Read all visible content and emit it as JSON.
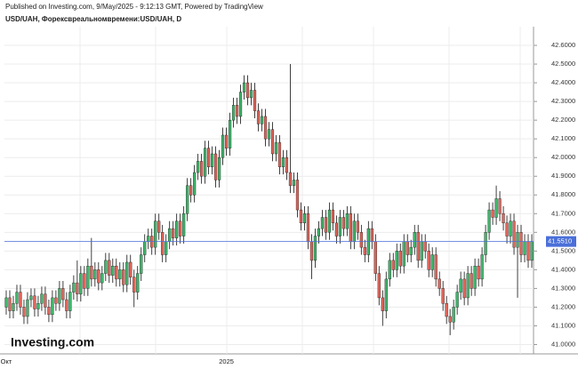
{
  "header": {
    "published": "Published on Investing.com, 9/May/2025 - 9:12:13 GMT, Powered by TradingView",
    "symbol": "USD/UAH, Форексвреальномвремени:USD/UAH, D"
  },
  "logo": "Investing.com",
  "chart_data": {
    "type": "candlestick",
    "up_color": "#3fb76b",
    "down_color": "#e0655a",
    "wick_color": "#111",
    "last_price": {
      "value": 41.551,
      "label": "41.5510"
    },
    "last_price_color": "#4a6fd8",
    "ylim": [
      40.95,
      42.7
    ],
    "yticks": [
      {
        "value": 41,
        "label": "41.0000"
      },
      {
        "value": 41.1,
        "label": "41.1000"
      },
      {
        "value": 41.2,
        "label": "41.2000"
      },
      {
        "value": 41.3,
        "label": "41.3000"
      },
      {
        "value": 41.4,
        "label": "41.4000"
      },
      {
        "value": 41.5,
        "label": "41.5000"
      },
      {
        "value": 41.6,
        "label": "41.6000"
      },
      {
        "value": 41.7,
        "label": "41.7000"
      },
      {
        "value": 41.8,
        "label": "41.8000"
      },
      {
        "value": 41.9,
        "label": "41.9000"
      },
      {
        "value": 42,
        "label": "42.0000"
      },
      {
        "value": 42.1,
        "label": "42.1000"
      },
      {
        "value": 42.2,
        "label": "42.2000"
      },
      {
        "value": 42.3,
        "label": "42.3000"
      },
      {
        "value": 42.4,
        "label": "42.4000"
      },
      {
        "value": 42.5,
        "label": "42.5000"
      },
      {
        "value": 42.6,
        "label": "42.6000"
      }
    ],
    "grid": true,
    "categories": [
      "Окт",
      null,
      null,
      null,
      null,
      null,
      null,
      null,
      null,
      null,
      null,
      null,
      null,
      null,
      null,
      null,
      null,
      null,
      null,
      null,
      null,
      null,
      null,
      null,
      null,
      null,
      null,
      null,
      null,
      null,
      null,
      null,
      null,
      null,
      null,
      null,
      null,
      null,
      null,
      null,
      null,
      null,
      null,
      null,
      null,
      null,
      null,
      null,
      null,
      null,
      null,
      null,
      null,
      null,
      null,
      null,
      null,
      null,
      null,
      null,
      null,
      null,
      "2025",
      null,
      null,
      null,
      null,
      null,
      null,
      null,
      null,
      null,
      null,
      null,
      null,
      null,
      null,
      null,
      null,
      null,
      null,
      null,
      null,
      null,
      null,
      null,
      null,
      null,
      null,
      null,
      null,
      null,
      null,
      null,
      null,
      null,
      null,
      null,
      null,
      null,
      null,
      null,
      null,
      null,
      null,
      null,
      null,
      null,
      null,
      null,
      null,
      null,
      null,
      null,
      null,
      null,
      null,
      null,
      null,
      null,
      null,
      null,
      null,
      null,
      null,
      null,
      null,
      null,
      null,
      null,
      null,
      null,
      null,
      null,
      null,
      null,
      null,
      null,
      null,
      null,
      null,
      null,
      null,
      null,
      null,
      null,
      null,
      null,
      null
    ],
    "open": [
      41.2,
      41.25,
      41.18,
      41.22,
      41.28,
      41.2,
      41.15,
      41.24,
      41.26,
      41.19,
      41.22,
      41.27,
      41.2,
      41.16,
      41.25,
      41.22,
      41.3,
      41.24,
      41.18,
      41.28,
      41.33,
      41.27,
      41.38,
      41.3,
      41.42,
      41.35,
      41.4,
      41.33,
      41.38,
      41.45,
      41.37,
      41.42,
      41.35,
      41.4,
      41.32,
      41.44,
      41.36,
      41.28,
      41.38,
      41.48,
      41.55,
      41.58,
      41.52,
      41.66,
      41.6,
      41.48,
      41.55,
      41.62,
      41.57,
      41.66,
      41.58,
      41.7,
      41.85,
      41.8,
      41.92,
      41.98,
      41.9,
      42.05,
      41.95,
      42.02,
      41.88,
      42.0,
      42.12,
      42.05,
      42.2,
      42.28,
      42.22,
      42.35,
      42.4,
      42.32,
      42.36,
      42.25,
      42.18,
      42.22,
      42.1,
      42.15,
      42.02,
      42.08,
      41.95,
      42.0,
      41.92,
      41.85,
      41.88,
      41.72,
      41.65,
      41.7,
      41.55,
      41.45,
      41.58,
      41.62,
      41.68,
      41.6,
      41.72,
      41.65,
      41.58,
      41.68,
      41.62,
      41.7,
      41.55,
      41.66,
      41.6,
      41.52,
      41.48,
      41.62,
      41.55,
      41.38,
      41.25,
      41.18,
      41.35,
      41.45,
      41.4,
      41.5,
      41.42,
      41.55,
      41.48,
      41.52,
      41.6,
      41.45,
      41.55,
      41.5,
      41.4,
      41.48,
      41.35,
      41.3,
      41.22,
      41.15,
      41.12,
      41.2,
      41.28,
      41.35,
      41.25,
      41.38,
      41.3,
      41.42,
      41.35,
      41.48,
      41.6,
      41.72,
      41.68,
      41.78,
      41.7,
      41.65,
      41.58,
      41.66,
      41.52,
      41.6,
      41.48,
      41.55,
      41.45
    ],
    "high": [
      41.29,
      41.29,
      41.26,
      41.32,
      41.32,
      41.24,
      41.28,
      41.3,
      41.3,
      41.26,
      41.31,
      41.31,
      41.24,
      41.29,
      41.29,
      41.34,
      41.34,
      41.28,
      41.32,
      41.37,
      41.45,
      41.42,
      41.42,
      41.46,
      41.57,
      41.44,
      41.44,
      41.42,
      41.49,
      41.49,
      41.46,
      41.46,
      41.44,
      41.44,
      41.48,
      41.48,
      41.4,
      41.42,
      41.52,
      41.59,
      41.62,
      41.62,
      41.7,
      41.7,
      41.64,
      41.59,
      41.66,
      41.66,
      41.7,
      41.7,
      41.74,
      41.89,
      41.89,
      41.96,
      42.02,
      42.02,
      42.09,
      42.09,
      42.06,
      42.06,
      42.04,
      42.16,
      42.16,
      42.24,
      42.32,
      42.32,
      42.39,
      42.44,
      42.44,
      42.4,
      42.4,
      42.29,
      42.26,
      42.26,
      42.19,
      42.19,
      42.12,
      42.12,
      42.04,
      42.04,
      42.5,
      41.92,
      41.92,
      41.76,
      41.74,
      41.74,
      41.59,
      41.62,
      41.66,
      41.72,
      41.72,
      41.76,
      41.76,
      41.69,
      41.72,
      41.72,
      41.74,
      41.74,
      41.7,
      41.7,
      41.64,
      41.56,
      41.66,
      41.66,
      41.59,
      41.42,
      41.29,
      41.39,
      41.49,
      41.49,
      41.54,
      41.54,
      41.59,
      41.59,
      41.56,
      41.64,
      41.64,
      41.59,
      41.59,
      41.54,
      41.52,
      41.52,
      41.39,
      41.34,
      41.26,
      41.19,
      41.24,
      41.32,
      41.39,
      41.39,
      41.42,
      41.42,
      41.46,
      41.46,
      41.52,
      41.64,
      41.76,
      41.76,
      41.85,
      41.82,
      41.74,
      41.69,
      41.7,
      41.7,
      41.64,
      41.64,
      41.59,
      41.59,
      41.59
    ],
    "low": [
      41.16,
      41.14,
      41.14,
      41.18,
      41.16,
      41.11,
      41.11,
      41.2,
      41.15,
      41.15,
      41.18,
      41.16,
      41.12,
      41.12,
      41.18,
      41.18,
      41.2,
      41.14,
      41.14,
      41.24,
      41.23,
      41.23,
      41.26,
      41.26,
      41.31,
      41.31,
      41.29,
      41.29,
      41.34,
      41.33,
      41.33,
      41.31,
      41.31,
      41.28,
      41.28,
      41.32,
      41.2,
      41.24,
      41.34,
      41.44,
      41.51,
      41.48,
      41.48,
      41.56,
      41.44,
      41.44,
      41.51,
      41.53,
      41.53,
      41.54,
      41.54,
      41.66,
      41.76,
      41.76,
      41.88,
      41.86,
      41.86,
      41.91,
      41.91,
      41.84,
      41.84,
      41.96,
      42.01,
      42.01,
      42.16,
      42.18,
      42.18,
      42.31,
      42.28,
      42.28,
      42.21,
      42.14,
      42.14,
      42.06,
      42.06,
      41.98,
      41.98,
      41.91,
      41.91,
      41.88,
      41.81,
      41.81,
      41.68,
      41.61,
      41.61,
      41.51,
      41.35,
      41.41,
      41.54,
      41.58,
      41.56,
      41.56,
      41.61,
      41.54,
      41.54,
      41.58,
      41.58,
      41.51,
      41.51,
      41.56,
      41.48,
      41.44,
      41.44,
      41.51,
      41.34,
      41.21,
      41.1,
      41.14,
      41.31,
      41.36,
      41.36,
      41.38,
      41.38,
      41.44,
      41.44,
      41.48,
      41.41,
      41.41,
      41.46,
      41.36,
      41.36,
      41.31,
      41.26,
      41.18,
      41.11,
      41.05,
      41.08,
      41.16,
      41.24,
      41.21,
      41.21,
      41.26,
      41.26,
      41.31,
      41.31,
      41.44,
      41.56,
      41.64,
      41.64,
      41.66,
      41.61,
      41.54,
      41.54,
      41.48,
      41.25,
      41.44,
      41.44,
      41.41,
      41.41
    ],
    "close": [
      41.25,
      41.18,
      41.22,
      41.28,
      41.2,
      41.15,
      41.24,
      41.26,
      41.19,
      41.22,
      41.27,
      41.2,
      41.16,
      41.25,
      41.22,
      41.3,
      41.24,
      41.18,
      41.28,
      41.33,
      41.27,
      41.38,
      41.3,
      41.42,
      41.35,
      41.4,
      41.33,
      41.38,
      41.45,
      41.37,
      41.42,
      41.35,
      41.4,
      41.32,
      41.44,
      41.36,
      41.28,
      41.38,
      41.48,
      41.55,
      41.58,
      41.52,
      41.66,
      41.6,
      41.48,
      41.55,
      41.62,
      41.57,
      41.66,
      41.58,
      41.7,
      41.85,
      41.8,
      41.92,
      41.98,
      41.9,
      42.05,
      41.95,
      42.02,
      41.88,
      42.0,
      42.12,
      42.05,
      42.2,
      42.28,
      42.22,
      42.35,
      42.4,
      42.32,
      42.36,
      42.25,
      42.18,
      42.22,
      42.1,
      42.15,
      42.02,
      42.08,
      41.95,
      42.0,
      41.92,
      41.85,
      41.88,
      41.72,
      41.65,
      41.7,
      41.55,
      41.45,
      41.58,
      41.62,
      41.68,
      41.6,
      41.72,
      41.65,
      41.58,
      41.68,
      41.62,
      41.7,
      41.55,
      41.66,
      41.6,
      41.52,
      41.48,
      41.62,
      41.55,
      41.38,
      41.25,
      41.18,
      41.35,
      41.45,
      41.4,
      41.5,
      41.42,
      41.55,
      41.48,
      41.52,
      41.6,
      41.45,
      41.55,
      41.5,
      41.4,
      41.48,
      41.35,
      41.3,
      41.22,
      41.15,
      41.12,
      41.2,
      41.28,
      41.35,
      41.25,
      41.38,
      41.3,
      41.42,
      41.35,
      41.48,
      41.6,
      41.72,
      41.68,
      41.78,
      41.7,
      41.65,
      41.58,
      41.66,
      41.52,
      41.6,
      41.48,
      41.55,
      41.45,
      41.551
    ]
  }
}
